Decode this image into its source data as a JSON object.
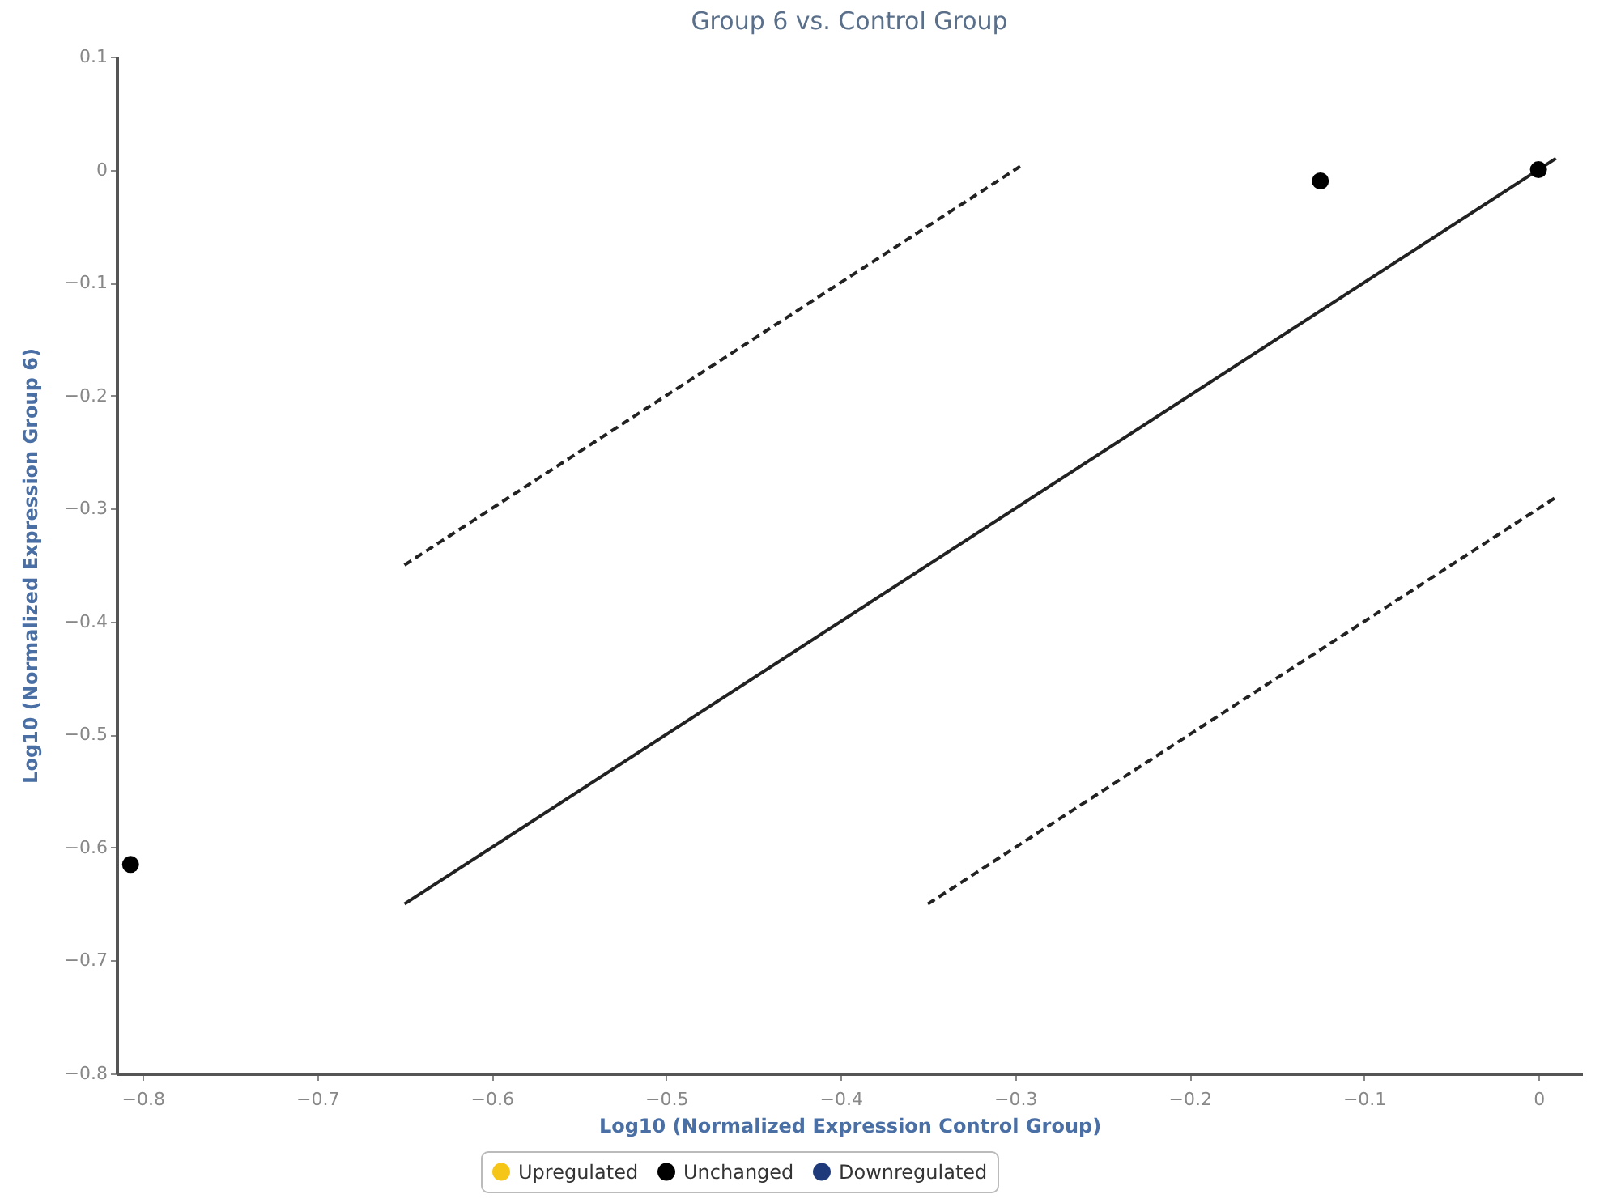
{
  "chart_data": {
    "type": "scatter",
    "title": "Group 6 vs. Control Group",
    "xlabel": "Log10 (Normalized Expression Control Group)",
    "ylabel": "Log10 (Normalized Expression Group 6)",
    "xlim": [
      -0.815,
      0.025
    ],
    "ylim": [
      -0.8,
      0.1
    ],
    "xticks": [
      -0.8,
      -0.7,
      -0.6,
      -0.5,
      -0.4,
      -0.3,
      -0.2,
      -0.1,
      0
    ],
    "yticks": [
      -0.8,
      -0.7,
      -0.6,
      -0.5,
      -0.4,
      -0.3,
      -0.2,
      -0.1,
      0,
      0.1
    ],
    "grid": false,
    "legend": "bottom",
    "series": [
      {
        "name": "Upregulated",
        "color": "#f5c518"
      },
      {
        "name": "Unchanged",
        "color": "#000000",
        "x": [
          -0.807,
          -0.125,
          0
        ],
        "values": [
          -0.615,
          -0.01,
          0
        ]
      },
      {
        "name": "Downregulated",
        "color": "#1f3a7a"
      },
      {
        "type": "line",
        "color": "#222222",
        "line_style": "solid",
        "x": [
          -0.65,
          0.01
        ],
        "values": [
          -0.65,
          0.01
        ]
      },
      {
        "type": "line",
        "color": "#222222",
        "line_style": "dashed",
        "x": [
          -0.65,
          -0.295
        ],
        "values": [
          -0.35,
          0.005
        ]
      },
      {
        "type": "line",
        "color": "#222222",
        "line_style": "dashed",
        "x": [
          -0.35,
          0.01
        ],
        "values": [
          -0.65,
          -0.29
        ]
      }
    ]
  }
}
